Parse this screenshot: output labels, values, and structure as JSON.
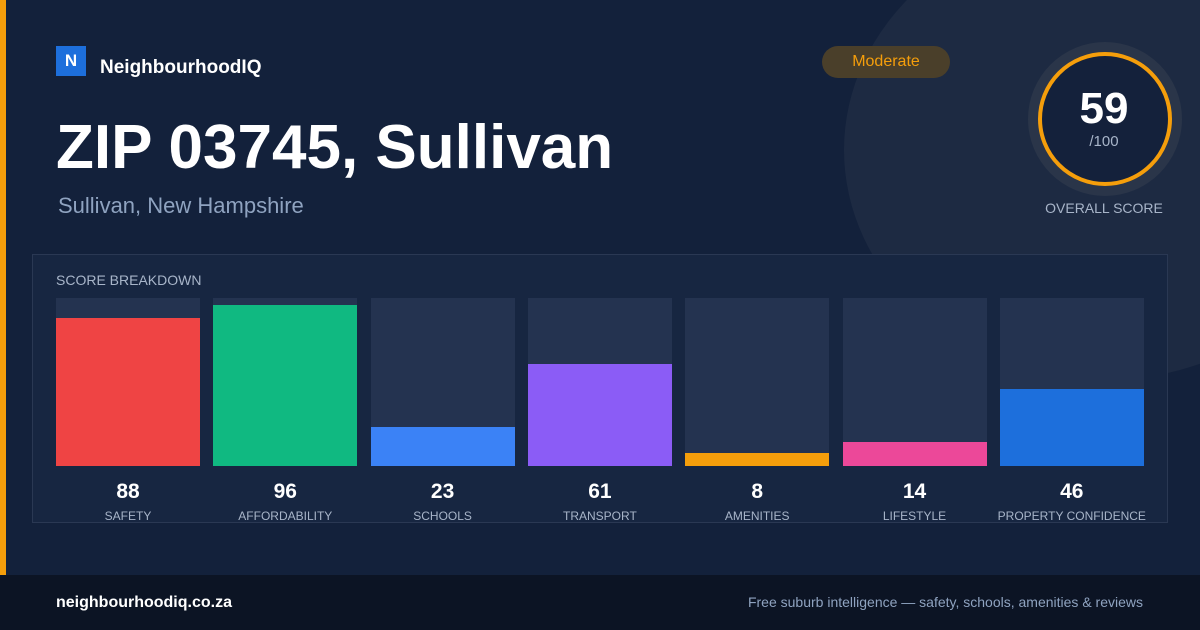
{
  "brand": {
    "logo_letter": "N",
    "name": "NeighbourhoodIQ"
  },
  "badge": "Moderate",
  "title": "ZIP 03745, Sullivan",
  "subtitle": "Sullivan, New Hampshire",
  "score": {
    "value": 59,
    "out_of": {
      "value": 100,
      "label": "/100"
    },
    "label": "OVERALL SCORE"
  },
  "breakdown": {
    "title": "SCORE BREAKDOWN",
    "items": [
      {
        "name": "SAFETY",
        "value": 88,
        "color": "#ef4444"
      },
      {
        "name": "AFFORDABILITY",
        "value": 96,
        "color": "#10b981"
      },
      {
        "name": "SCHOOLS",
        "value": 23,
        "color": "#3b82f6"
      },
      {
        "name": "TRANSPORT",
        "value": 61,
        "color": "#8b5cf6"
      },
      {
        "name": "AMENITIES",
        "value": 8,
        "color": "#f59e0b"
      },
      {
        "name": "LIFESTYLE",
        "value": 14,
        "color": "#ec4899"
      },
      {
        "name": "PROPERTY CONFIDENCE",
        "value": 46,
        "color": "#1d6fdc"
      }
    ]
  },
  "footer": {
    "url": "neighbourhoodiq.co.za",
    "tagline": "Free suburb intelligence — safety, schools, amenities & reviews"
  }
}
